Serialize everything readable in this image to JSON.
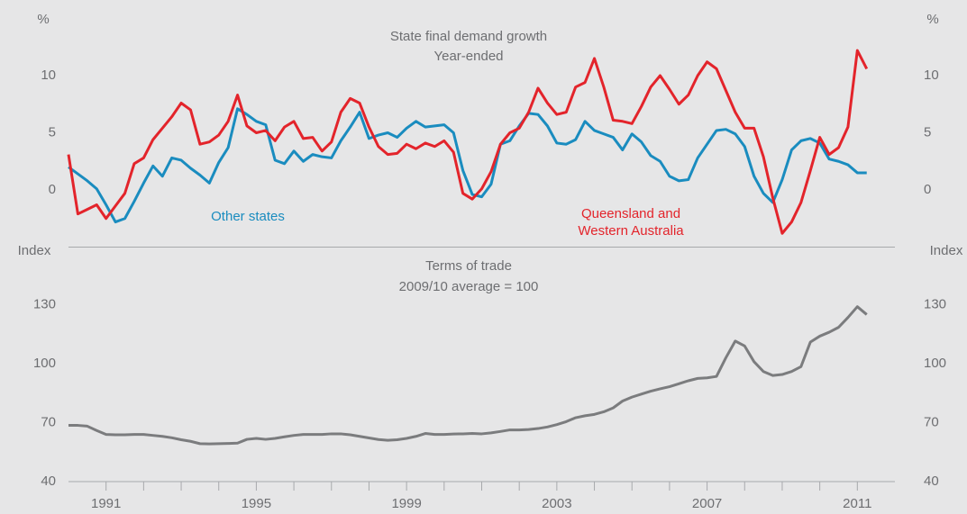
{
  "chart_data": [
    {
      "type": "line",
      "title": "State final demand growth",
      "subtitle": "Year-ended",
      "ylabel": "%",
      "xlim": [
        1990,
        2012
      ],
      "ylim": [
        -5,
        15
      ],
      "yticks": [
        0,
        5,
        10
      ],
      "x": [
        1990,
        1990.25,
        1990.5,
        1990.75,
        1991,
        1991.25,
        1991.5,
        1991.75,
        1992,
        1992.25,
        1992.5,
        1992.75,
        1993,
        1993.25,
        1993.5,
        1993.75,
        1994,
        1994.25,
        1994.5,
        1994.75,
        1995,
        1995.25,
        1995.5,
        1995.75,
        1996,
        1996.25,
        1996.5,
        1996.75,
        1997,
        1997.25,
        1997.5,
        1997.75,
        1998,
        1998.25,
        1998.5,
        1998.75,
        1999,
        1999.25,
        1999.5,
        1999.75,
        2000,
        2000.25,
        2000.5,
        2000.75,
        2001,
        2001.25,
        2001.5,
        2001.75,
        2002,
        2002.25,
        2002.5,
        2002.75,
        2003,
        2003.25,
        2003.5,
        2003.75,
        2004,
        2004.25,
        2004.5,
        2004.75,
        2005,
        2005.25,
        2005.5,
        2005.75,
        2006,
        2006.25,
        2006.5,
        2006.75,
        2007,
        2007.25,
        2007.5,
        2007.75,
        2008,
        2008.25,
        2008.5,
        2008.75,
        2009,
        2009.25,
        2009.5,
        2009.75,
        2010,
        2010.25,
        2010.5,
        2010.75,
        2011,
        2011.25
      ],
      "series": [
        {
          "label": [
            "Other states"
          ],
          "color": "#1a8cbf",
          "values": [
            2.0,
            1.4,
            0.8,
            0.1,
            -1.3,
            -2.8,
            -2.5,
            -1.0,
            0.6,
            2.1,
            1.2,
            2.8,
            2.6,
            1.9,
            1.3,
            0.6,
            2.4,
            3.7,
            7.1,
            6.6,
            6.0,
            5.7,
            2.6,
            2.3,
            3.4,
            2.5,
            3.1,
            2.9,
            2.8,
            4.3,
            5.5,
            6.8,
            4.5,
            4.8,
            5.0,
            4.6,
            5.4,
            6.0,
            5.5,
            5.6,
            5.7,
            5.0,
            1.7,
            -0.4,
            -0.6,
            0.5,
            4.0,
            4.3,
            5.6,
            6.7,
            6.6,
            5.6,
            4.1,
            4.0,
            4.4,
            6.0,
            5.2,
            4.9,
            4.6,
            3.5,
            4.9,
            4.2,
            3.0,
            2.5,
            1.2,
            0.8,
            0.9,
            2.8,
            4.0,
            5.2,
            5.3,
            4.9,
            3.8,
            1.2,
            -0.3,
            -1.1,
            0.9,
            3.5,
            4.3,
            4.5,
            4.1,
            2.7,
            2.5,
            2.2,
            1.5,
            1.5
          ]
        },
        {
          "label": [
            "Queensland and",
            "Western Australia"
          ],
          "color": "#e3242b",
          "values": [
            3.1,
            -2.1,
            -1.7,
            -1.3,
            -2.5,
            -1.4,
            -0.3,
            2.3,
            2.8,
            4.4,
            5.4,
            6.4,
            7.6,
            7.0,
            4.0,
            4.2,
            4.8,
            6.0,
            8.3,
            5.6,
            5.0,
            5.2,
            4.3,
            5.5,
            6.0,
            4.5,
            4.6,
            3.4,
            4.2,
            6.8,
            8.0,
            7.6,
            5.5,
            3.8,
            3.1,
            3.2,
            4.0,
            3.6,
            4.1,
            3.8,
            4.3,
            3.3,
            -0.3,
            -0.8,
            0.1,
            1.6,
            4.0,
            5.0,
            5.4,
            6.8,
            8.9,
            7.6,
            6.6,
            6.8,
            9.0,
            9.4,
            11.5,
            9.0,
            6.1,
            6.0,
            5.8,
            7.3,
            9.0,
            10.0,
            8.8,
            7.5,
            8.3,
            10.0,
            11.2,
            10.6,
            8.7,
            6.8,
            5.4,
            5.4,
            2.9,
            -0.7,
            -3.8,
            -2.8,
            -1.1,
            1.7,
            4.6,
            3.1,
            3.7,
            5.5,
            12.2,
            10.6
          ]
        }
      ]
    },
    {
      "type": "line",
      "title": "Terms of trade",
      "subtitle": "2009/10 average = 100",
      "ylabel": "Index",
      "xlim": [
        1990,
        2012
      ],
      "ylim": [
        40,
        160
      ],
      "yticks": [
        40,
        70,
        100,
        130
      ],
      "xticks": [
        1991,
        1995,
        1999,
        2003,
        2007,
        2011
      ],
      "xminor_ticks": [
        1991,
        1992,
        1993,
        1994,
        1995,
        1996,
        1997,
        1998,
        1999,
        2000,
        2001,
        2002,
        2003,
        2004,
        2005,
        2006,
        2007,
        2008,
        2009,
        2010,
        2011
      ],
      "x": [
        1990,
        1990.25,
        1990.5,
        1990.75,
        1991,
        1991.25,
        1991.5,
        1991.75,
        1992,
        1992.25,
        1992.5,
        1992.75,
        1993,
        1993.25,
        1993.5,
        1993.75,
        1994,
        1994.25,
        1994.5,
        1994.75,
        1995,
        1995.25,
        1995.5,
        1995.75,
        1996,
        1996.25,
        1996.5,
        1996.75,
        1997,
        1997.25,
        1997.5,
        1997.75,
        1998,
        1998.25,
        1998.5,
        1998.75,
        1999,
        1999.25,
        1999.5,
        1999.75,
        2000,
        2000.25,
        2000.5,
        2000.75,
        2001,
        2001.25,
        2001.5,
        2001.75,
        2002,
        2002.25,
        2002.5,
        2002.75,
        2003,
        2003.25,
        2003.5,
        2003.75,
        2004,
        2004.25,
        2004.5,
        2004.75,
        2005,
        2005.25,
        2005.5,
        2005.75,
        2006,
        2006.25,
        2006.5,
        2006.75,
        2007,
        2007.25,
        2007.5,
        2007.75,
        2008,
        2008.25,
        2008.5,
        2008.75,
        2009,
        2009.25,
        2009.5,
        2009.75,
        2010,
        2010.25,
        2010.5,
        2010.75,
        2011,
        2011.25
      ],
      "series": [
        {
          "color": "#7b7c7e",
          "values": [
            68.6,
            68.6,
            68.2,
            66,
            64,
            63.8,
            63.8,
            64,
            64,
            63.5,
            63,
            62.3,
            61.3,
            60.5,
            59.3,
            59.2,
            59.3,
            59.4,
            59.6,
            61.5,
            62,
            61.5,
            62,
            62.8,
            63.5,
            64,
            64,
            64,
            64.3,
            64.3,
            63.8,
            63,
            62.2,
            61.4,
            61,
            61.3,
            62,
            63,
            64.5,
            64,
            64,
            64.2,
            64.3,
            64.5,
            64.3,
            64.8,
            65.5,
            66.3,
            66.3,
            66.5,
            67,
            67.8,
            69,
            70.5,
            72.5,
            73.5,
            74.2,
            75.5,
            77.5,
            81,
            83,
            84.5,
            86,
            87.2,
            88.3,
            89.8,
            91.3,
            92.5,
            92.8,
            93.5,
            103,
            111.5,
            109,
            101,
            96,
            94,
            94.5,
            96,
            98.5,
            111,
            114,
            116,
            118.5,
            123.5,
            129,
            125
          ]
        }
      ]
    }
  ]
}
